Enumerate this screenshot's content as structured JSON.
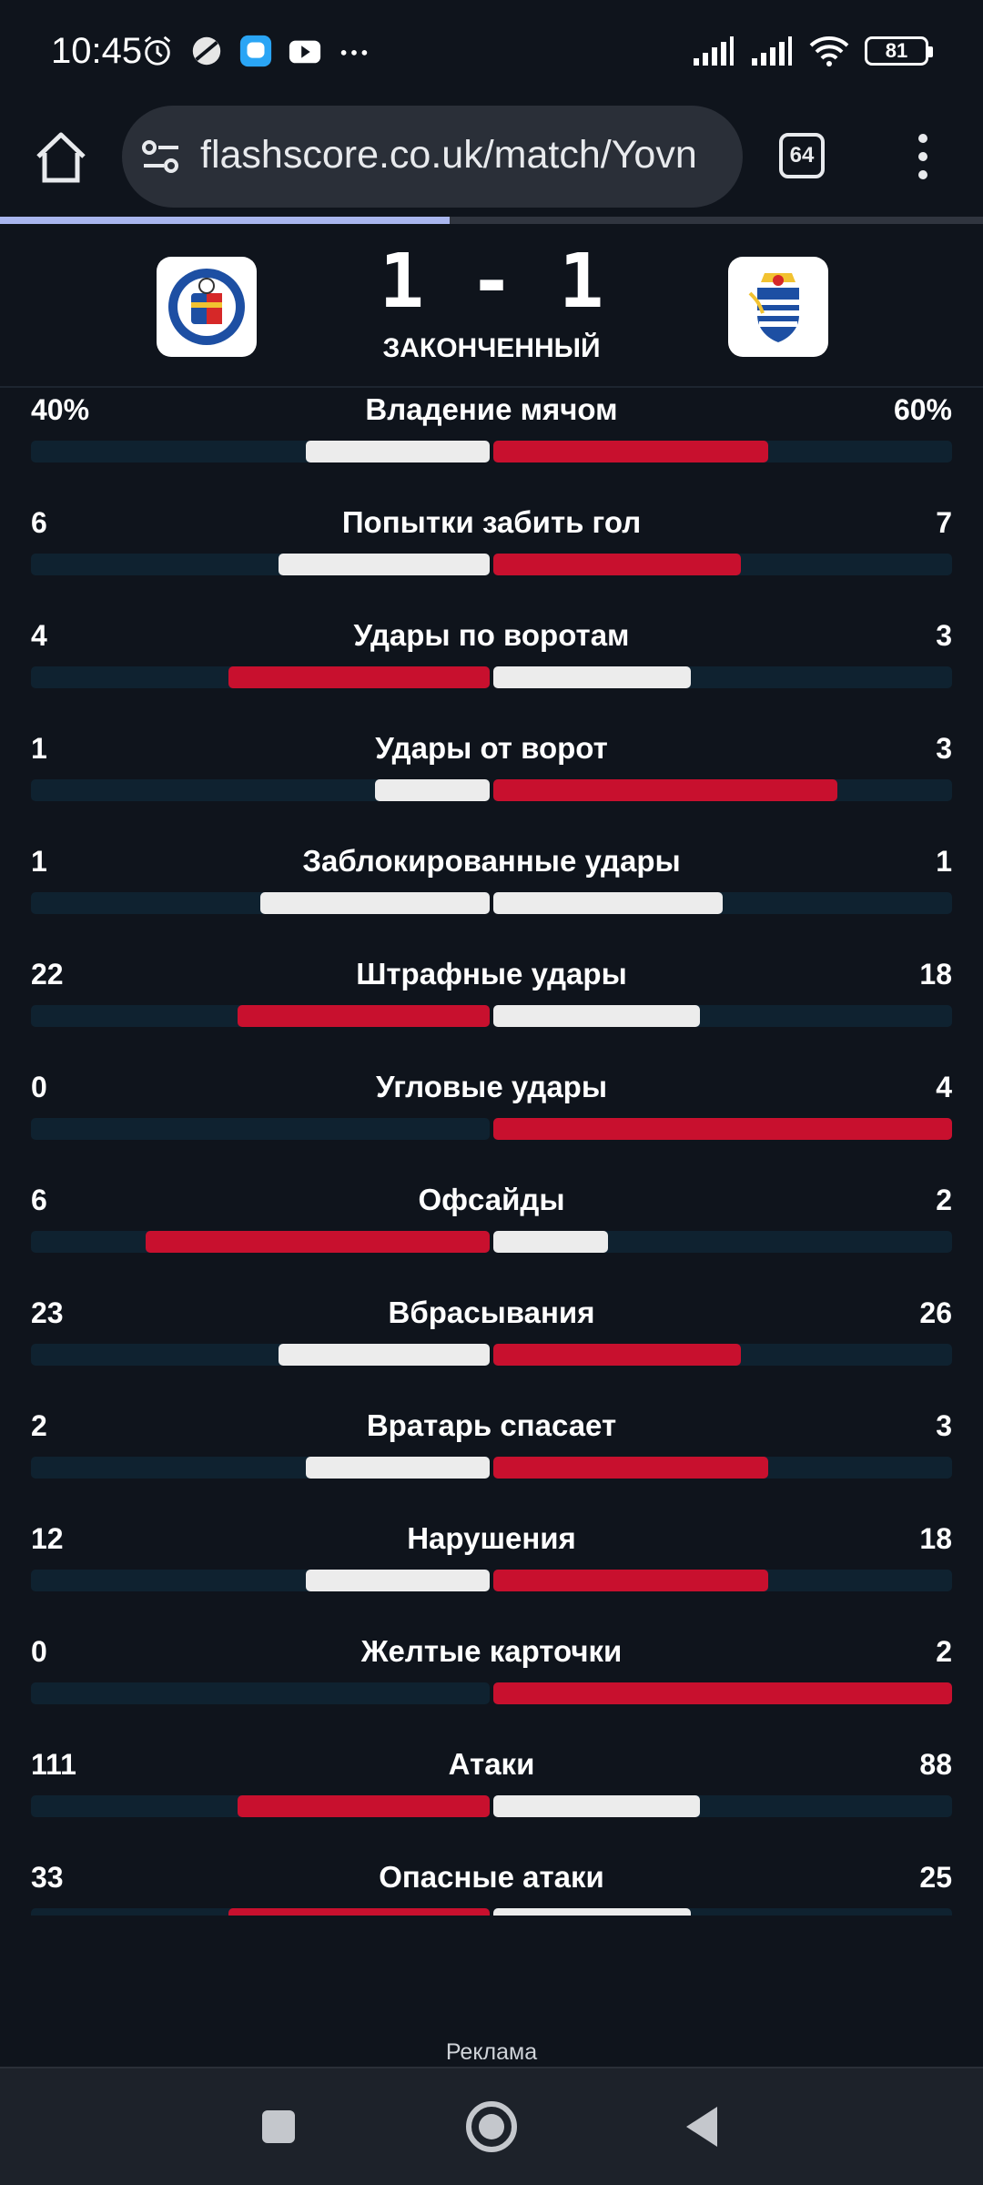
{
  "status_bar": {
    "time": "10:45",
    "battery": "81",
    "icons": [
      "alarm-icon",
      "no-sim-icon",
      "messenger-icon",
      "youtube-icon",
      "more-dots-icon",
      "signal-icon",
      "signal-icon",
      "wifi-icon"
    ]
  },
  "browser": {
    "url": "flashscore.co.uk/match/Yovn",
    "tab_count": "64",
    "load_progress": 0.457
  },
  "match": {
    "score": "1 - 1",
    "status": "ЗАКОНЧЕННЫЙ",
    "home_logo": "getafe-logo",
    "away_logo": "real-sociedad-logo"
  },
  "colors": {
    "leader_bar": "#c8102e",
    "trailer_bar": "#ececec",
    "track": "#0f2230"
  },
  "stats": [
    {
      "name": "Владение мячом",
      "home": "40%",
      "away": "60%",
      "home_pct": 40,
      "away_pct": 60
    },
    {
      "name": "Попытки забить гол",
      "home": "6",
      "away": "7",
      "home_pct": 46,
      "away_pct": 54
    },
    {
      "name": "Удары по воротам",
      "home": "4",
      "away": "3",
      "home_pct": 57,
      "away_pct": 43
    },
    {
      "name": "Удары от ворот",
      "home": "1",
      "away": "3",
      "home_pct": 25,
      "away_pct": 75
    },
    {
      "name": "Заблокированные удары",
      "home": "1",
      "away": "1",
      "home_pct": 50,
      "away_pct": 50
    },
    {
      "name": "Штрафные удары",
      "home": "22",
      "away": "18",
      "home_pct": 55,
      "away_pct": 45
    },
    {
      "name": "Угловые удары",
      "home": "0",
      "away": "4",
      "home_pct": 0,
      "away_pct": 100
    },
    {
      "name": "Офсайды",
      "home": "6",
      "away": "2",
      "home_pct": 75,
      "away_pct": 25
    },
    {
      "name": "Вбрасывания",
      "home": "23",
      "away": "26",
      "home_pct": 46,
      "away_pct": 54
    },
    {
      "name": "Вратарь спасает",
      "home": "2",
      "away": "3",
      "home_pct": 40,
      "away_pct": 60
    },
    {
      "name": "Нарушения",
      "home": "12",
      "away": "18",
      "home_pct": 40,
      "away_pct": 60
    },
    {
      "name": "Желтые карточки",
      "home": "0",
      "away": "2",
      "home_pct": 0,
      "away_pct": 100
    },
    {
      "name": "Атаки",
      "home": "111",
      "away": "88",
      "home_pct": 55,
      "away_pct": 45
    },
    {
      "name": "Опасные атаки",
      "home": "33",
      "away": "25",
      "home_pct": 57,
      "away_pct": 43
    }
  ],
  "ad_label": "Реклама",
  "nav": [
    "recents-square-icon",
    "home-circle-icon",
    "back-triangle-icon"
  ]
}
